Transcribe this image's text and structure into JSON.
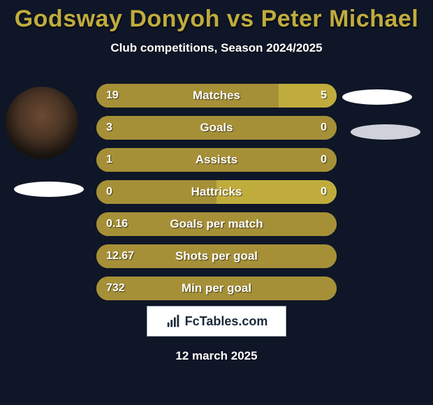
{
  "title": "Godsway Donyoh vs Peter Michael",
  "title_color": "#c0ac3d",
  "subtitle": "Club competitions, Season 2024/2025",
  "date": "12 march 2025",
  "background_color": "#0f1627",
  "text_color": "#ffffff",
  "avatar_left": true,
  "shadow_left": true,
  "shadow_right_top": true,
  "shadow_right_bot": true,
  "logo": {
    "text_prefix": "Fc",
    "text_rest": "Tables.com"
  },
  "bars": {
    "left_color": "#a69037",
    "right_color": "#c0ac3d",
    "bar_bg": "#a69037",
    "rows": [
      {
        "label": "Matches",
        "left_val": "19",
        "right_val": "5",
        "left_pct": 76,
        "right_pct": 24
      },
      {
        "label": "Goals",
        "left_val": "3",
        "right_val": "0",
        "left_pct": 100,
        "right_pct": 0
      },
      {
        "label": "Assists",
        "left_val": "1",
        "right_val": "0",
        "left_pct": 100,
        "right_pct": 0
      },
      {
        "label": "Hattricks",
        "left_val": "0",
        "right_val": "0",
        "left_pct": 50,
        "right_pct": 50
      },
      {
        "label": "Goals per match",
        "left_val": "0.16",
        "right_val": "",
        "left_pct": 100,
        "right_pct": 0
      },
      {
        "label": "Shots per goal",
        "left_val": "12.67",
        "right_val": "",
        "left_pct": 100,
        "right_pct": 0
      },
      {
        "label": "Min per goal",
        "left_val": "732",
        "right_val": "",
        "left_pct": 100,
        "right_pct": 0
      }
    ]
  }
}
